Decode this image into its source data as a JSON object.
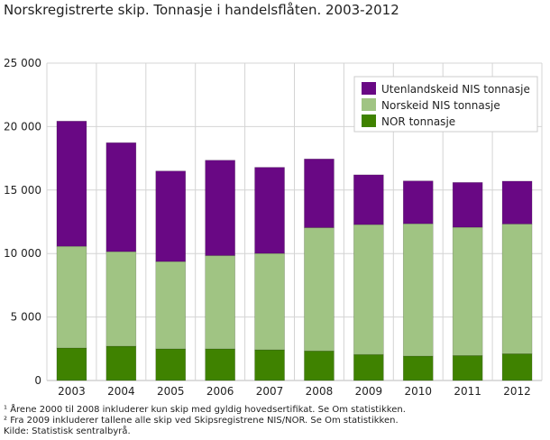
{
  "chart_data": {
    "type": "bar",
    "stacked": true,
    "title": "Norskregistrerte skip. Tonnasje i handelsflåten. 2003-2012",
    "xlabel": "",
    "ylabel": "",
    "ylim": [
      0,
      25000
    ],
    "yticks": [
      "0",
      "5 000",
      "10 000",
      "15 000",
      "20 000",
      "25 000"
    ],
    "grid": true,
    "legend_position": "top-right",
    "categories": [
      "2003",
      "2004",
      "2005",
      "2006",
      "2007",
      "2008",
      "2009",
      "2010",
      "2011",
      "2012"
    ],
    "series": [
      {
        "name": "NOR tonnasje",
        "color": "#3f8200",
        "values": [
          2560,
          2700,
          2490,
          2490,
          2420,
          2330,
          2050,
          1920,
          1970,
          2110
        ]
      },
      {
        "name": "Norskeid NIS tonnasje",
        "color": "#a0c483",
        "values": [
          8010,
          7450,
          6880,
          7350,
          7590,
          9710,
          10230,
          10430,
          10100,
          10220
        ]
      },
      {
        "name": "Utenlandskeid NIS tonnasje",
        "color": "#690884",
        "values": [
          9860,
          8580,
          7130,
          7510,
          6780,
          5410,
          3920,
          3370,
          3530,
          3370
        ]
      }
    ]
  },
  "notes": [
    "¹ Årene 2000 til 2008 inkluderer kun skip med gyldig hovedsertifikat. Se Om statistikken.",
    "² Fra 2009 inkluderer tallene alle skip ved Skipsregistrene NIS/NOR. Se Om statistikken.",
    "Kilde: Statistisk sentralbyrå."
  ]
}
